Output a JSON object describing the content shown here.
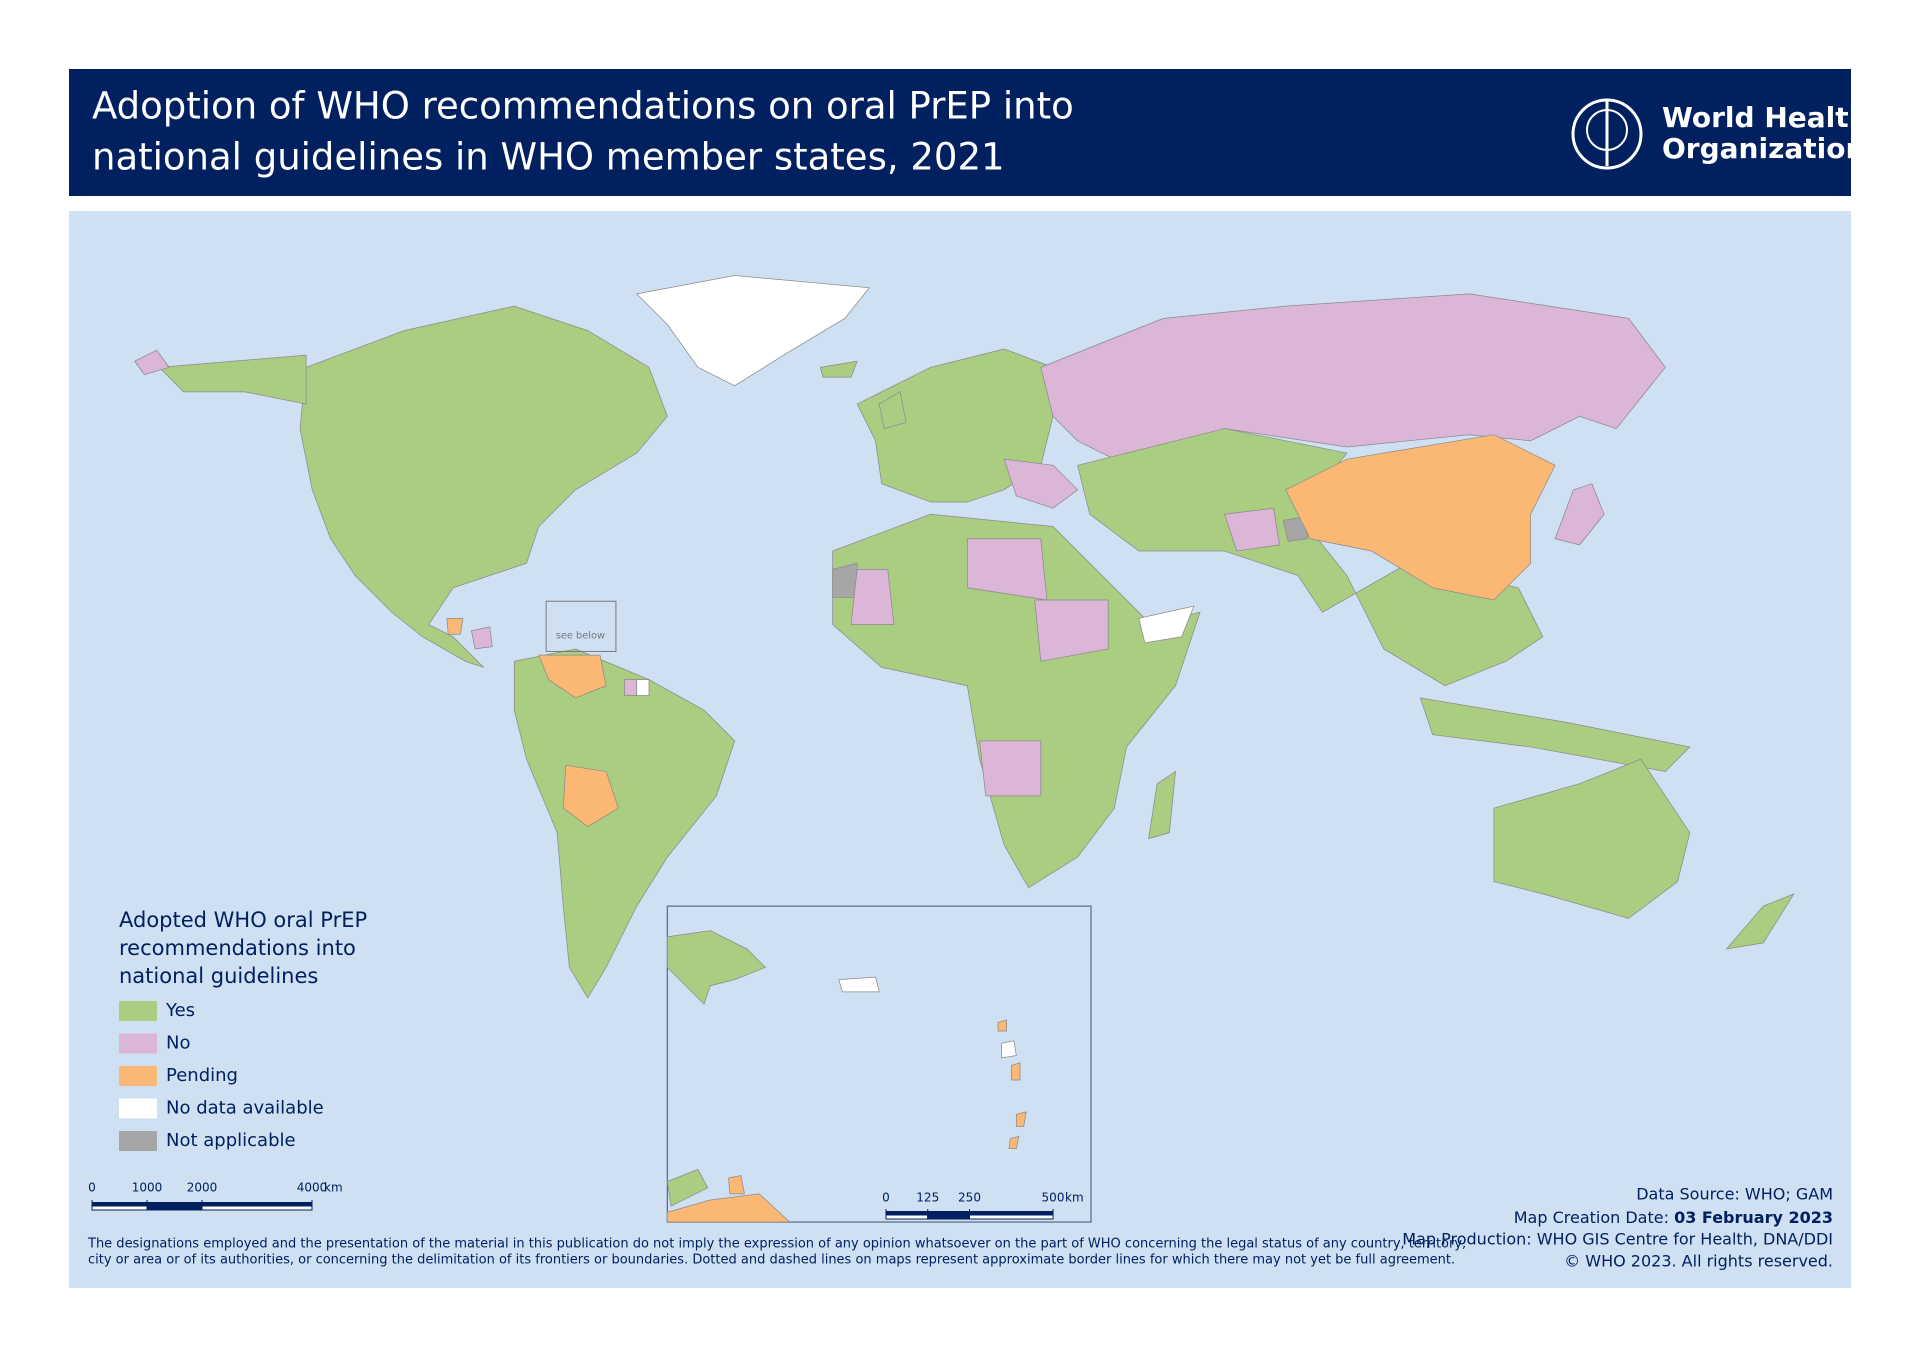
{
  "header": {
    "title_lines": [
      "Adoption of WHO recommendations on oral PrEP into",
      "national guidelines in WHO member states, 2021"
    ],
    "logo_lines": [
      "World Health",
      "Organization"
    ]
  },
  "map": {
    "inset_label": "see below",
    "legend": {
      "title_lines": [
        "Adopted WHO oral PrEP",
        "recommendations into",
        "national guidelines"
      ],
      "items": [
        {
          "label": "Yes",
          "color": "#abcd81"
        },
        {
          "label": "No",
          "color": "#dbb6d7"
        },
        {
          "label": "Pending",
          "color": "#fbb874"
        },
        {
          "label": "No data available",
          "color": "#ffffff"
        },
        {
          "label": "Not applicable",
          "color": "#a6a6a6"
        }
      ]
    },
    "scale_main": {
      "ticks": [
        0,
        1000,
        2000,
        4000
      ],
      "unit": "km"
    },
    "scale_inset": {
      "ticks": [
        0,
        125,
        250,
        500
      ],
      "unit": "km"
    }
  },
  "footer": {
    "disclaimer_lines": [
      "The designations employed and the presentation of the material in this publication do not imply the expression of any opinion whatsoever on the part of WHO concerning the legal status of any country, territory,",
      "city or area or of its authorities, or concerning the delimitation of its frontiers or boundaries. Dotted and dashed lines on maps represent approximate border lines for which there may not yet be full agreement."
    ],
    "data_source": "Data Source: WHO; GAM",
    "creation_label": "Map Creation Date:",
    "creation_date": "03 February 2023",
    "production": "Map Production: WHO GIS Centre for Health, DNA/DDI",
    "copyright": "© WHO 2023. All rights reserved."
  }
}
